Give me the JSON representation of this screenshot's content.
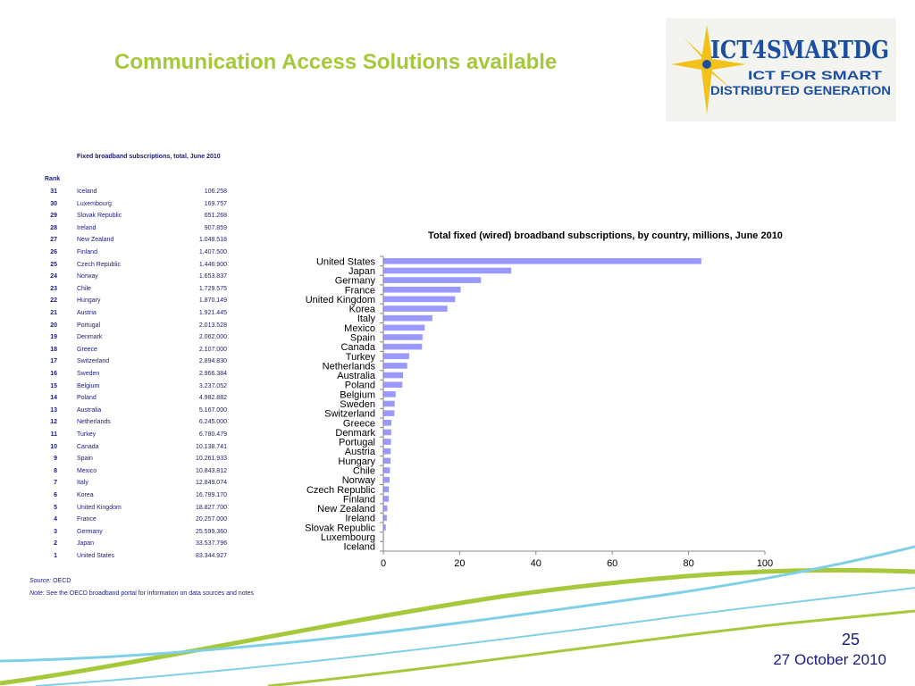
{
  "slide": {
    "title": "Communication Access Solutions available",
    "page_number": "25",
    "date": "27 October 2010"
  },
  "logo": {
    "name": "ICT4SMARTDG",
    "tagline_1": "ICT FOR SMART",
    "tagline_2": "DISTRIBUTED GENERATION"
  },
  "table": {
    "title": "Fixed broadband subscriptions, total, June 2010",
    "rank_header": "Rank",
    "rows": [
      {
        "rank": "31",
        "country": "Iceland",
        "value": "106.258"
      },
      {
        "rank": "30",
        "country": "Luxembourg",
        "value": "169.757"
      },
      {
        "rank": "29",
        "country": "Slovak Republic",
        "value": "651.268"
      },
      {
        "rank": "28",
        "country": "Ireland",
        "value": "907.859"
      },
      {
        "rank": "27",
        "country": "New Zealand",
        "value": "1.048.518"
      },
      {
        "rank": "26",
        "country": "Finland",
        "value": "1.407.500"
      },
      {
        "rank": "25",
        "country": "Czech Republic",
        "value": "1.446.900"
      },
      {
        "rank": "24",
        "country": "Norway",
        "value": "1.653.837"
      },
      {
        "rank": "23",
        "country": "Chile",
        "value": "1.729.575"
      },
      {
        "rank": "22",
        "country": "Hungary",
        "value": "1.870.149"
      },
      {
        "rank": "21",
        "country": "Austria",
        "value": "1.921.445"
      },
      {
        "rank": "20",
        "country": "Portugal",
        "value": "2.013.528"
      },
      {
        "rank": "19",
        "country": "Denmark",
        "value": "2.062.000"
      },
      {
        "rank": "18",
        "country": "Greece",
        "value": "2.107.000"
      },
      {
        "rank": "17",
        "country": "Switzerland",
        "value": "2.894.830"
      },
      {
        "rank": "16",
        "country": "Sweden",
        "value": "2.966.384"
      },
      {
        "rank": "15",
        "country": "Belgium",
        "value": "3.237.052"
      },
      {
        "rank": "14",
        "country": "Poland",
        "value": "4.982.882"
      },
      {
        "rank": "13",
        "country": "Australia",
        "value": "5.167.000"
      },
      {
        "rank": "12",
        "country": "Netherlands",
        "value": "6.245.000"
      },
      {
        "rank": "11",
        "country": "Turkey",
        "value": "6.780.479"
      },
      {
        "rank": "10",
        "country": "Canada",
        "value": "10.138.741"
      },
      {
        "rank": "9",
        "country": "Spain",
        "value": "10.261.933"
      },
      {
        "rank": "8",
        "country": "Mexico",
        "value": "10.843.812"
      },
      {
        "rank": "7",
        "country": "Italy",
        "value": "12.849.074"
      },
      {
        "rank": "6",
        "country": "Korea",
        "value": "16.789.170"
      },
      {
        "rank": "5",
        "country": "United Kingdom",
        "value": "18.827.700"
      },
      {
        "rank": "4",
        "country": "France",
        "value": "20.257.000"
      },
      {
        "rank": "3",
        "country": "Germany",
        "value": "25.599.360"
      },
      {
        "rank": "2",
        "country": "Japan",
        "value": "33.537.796"
      },
      {
        "rank": "1",
        "country": "United States",
        "value": "83.344.927"
      }
    ],
    "source_label": "Source:",
    "source_text": "OECD",
    "note_label": "Note:",
    "note_text": "See the OECD broadband portal for information on data sources and notes"
  },
  "chart_data": {
    "type": "bar",
    "orientation": "horizontal",
    "title": "Total  fixed (wired) broadband subscriptions, by country, millions, June 2010",
    "xlabel": "",
    "ylabel": "",
    "xlim": [
      0,
      100
    ],
    "xticks": [
      0,
      20,
      40,
      60,
      80,
      100
    ],
    "grid": false,
    "bar_color": "#9999ff",
    "categories": [
      "United States",
      "Japan",
      "Germany",
      "France",
      "United Kingdom",
      "Korea",
      "Italy",
      "Mexico",
      "Spain",
      "Canada",
      "Turkey",
      "Netherlands",
      "Australia",
      "Poland",
      "Belgium",
      "Sweden",
      "Switzerland",
      "Greece",
      "Denmark",
      "Portugal",
      "Austria",
      "Hungary",
      "Chile",
      "Norway",
      "Czech Republic",
      "Finland",
      "New Zealand",
      "Ireland",
      "Slovak Republic",
      "Luxembourg",
      "Iceland"
    ],
    "values": [
      83.34,
      33.54,
      25.6,
      20.26,
      18.83,
      16.79,
      12.85,
      10.84,
      10.26,
      10.14,
      6.78,
      6.25,
      5.17,
      4.98,
      3.24,
      2.97,
      2.89,
      2.11,
      2.06,
      2.01,
      1.92,
      1.87,
      1.73,
      1.65,
      1.45,
      1.41,
      1.05,
      0.91,
      0.65,
      0.17,
      0.11
    ]
  },
  "colors": {
    "title_green": "#a6c93c",
    "text_navy": "#1a1a80",
    "bar": "#9999ff"
  }
}
